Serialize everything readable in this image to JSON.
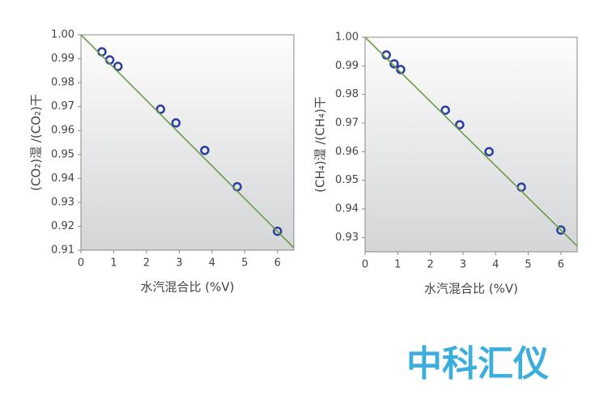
{
  "chart_data": [
    {
      "type": "scatter",
      "ylabel": "(CO₂)湿 /(CO₂)干",
      "xlabel": "水汽混合比 (%V)",
      "xlim": [
        0,
        6.5
      ],
      "xticks": [
        0,
        1,
        2,
        3,
        4,
        5,
        6
      ],
      "ylim": [
        0.91,
        1.0
      ],
      "yticks": [
        {
          "value": 0.91,
          "label": "0.91"
        },
        {
          "value": 0.92,
          "label": "0.92"
        },
        {
          "value": 0.93,
          "label": "0.93"
        },
        {
          "value": 0.94,
          "label": "0.94"
        },
        {
          "value": 0.95,
          "label": "0.95"
        },
        {
          "value": 0.96,
          "label": "0.96"
        },
        {
          "value": 0.97,
          "label": "0.97"
        },
        {
          "value": 0.98,
          "label": "0.98"
        },
        {
          "value": 0.99,
          "label": "0.99"
        },
        {
          "value": 1.0,
          "label": "1.00"
        }
      ],
      "series": [
        {
          "color": "#2b3f9e",
          "x": [
            0.64,
            0.88,
            1.13,
            2.43,
            2.9,
            3.78,
            4.77,
            6.0
          ],
          "values": [
            0.9929,
            0.9895,
            0.9868,
            0.9689,
            0.9632,
            0.9517,
            0.9365,
            0.9179
          ]
        },
        {
          "color": "#6a9a4a",
          "line": true,
          "x": [
            0,
            6.5
          ],
          "values": [
            1.0,
            0.911
          ]
        }
      ]
    },
    {
      "type": "scatter",
      "ylabel": "(CH₄)湿 /(CH₄)干",
      "xlabel": "水汽混合比 (%V)",
      "xlim": [
        0,
        6.5
      ],
      "xticks": [
        0,
        1,
        2,
        3,
        4,
        5,
        6
      ],
      "ylim": [
        0.925,
        1.0
      ],
      "yticks": [
        0.93,
        0.94,
        0.95,
        0.96,
        0.97,
        0.98,
        0.99,
        {
          "value": 1.0,
          "label": "1.00"
        }
      ],
      "series": [
        {
          "color": "#2b3f9e",
          "x": [
            0.65,
            0.89,
            1.09,
            2.46,
            2.9,
            3.8,
            4.79,
            6.0
          ],
          "values": [
            0.9938,
            0.9907,
            0.9887,
            0.9745,
            0.9694,
            0.96,
            0.9476,
            0.9326
          ]
        },
        {
          "color": "#6a9a4a",
          "line": true,
          "x": [
            0,
            6.5
          ],
          "values": [
            1.0,
            0.927
          ]
        }
      ]
    }
  ],
  "watermark": "中科汇仪"
}
